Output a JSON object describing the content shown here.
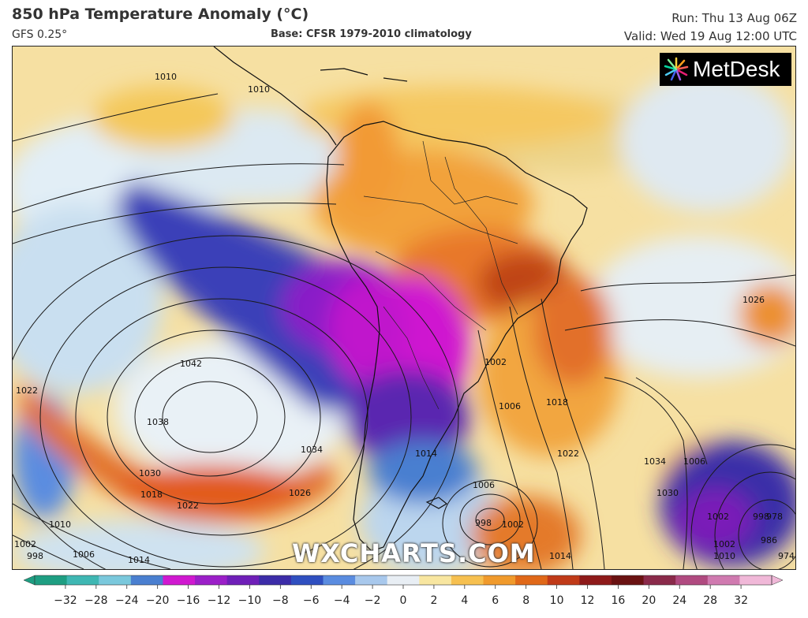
{
  "header": {
    "title": "850 hPa Temperature Anomaly (°C)",
    "model": "GFS 0.25°",
    "base": "Base: CFSR 1979-2010 climatology",
    "run": "Run: Thu 13 Aug 06Z",
    "valid": "Valid: Wed 19 Aug 12:00 UTC"
  },
  "branding": {
    "logo_text": "MetDesk",
    "watermark": "WXCHARTS.COM"
  },
  "isobar_labels": [
    "1010",
    "1010",
    "1042",
    "1038",
    "1030",
    "1034",
    "1026",
    "1022",
    "1018",
    "1022",
    "1010",
    "1006",
    "1002",
    "998",
    "1014",
    "1014",
    "1006",
    "1002",
    "998",
    "1002",
    "1006",
    "1014",
    "1018",
    "1022",
    "1026",
    "1034",
    "1030",
    "1006",
    "1002",
    "998",
    "986",
    "978",
    "974",
    "1002",
    "1010"
  ],
  "legend": {
    "ticks": [
      "−32",
      "−28",
      "−24",
      "−20",
      "−16",
      "−12",
      "−10",
      "−8",
      "−6",
      "−4",
      "−2",
      "0",
      "2",
      "4",
      "6",
      "8",
      "10",
      "12",
      "16",
      "20",
      "24",
      "28",
      "32"
    ],
    "colors": [
      "#1e9e82",
      "#3fb7b3",
      "#7ac8dc",
      "#4a7fd0",
      "#d018d0",
      "#9b1fc8",
      "#6f1fb8",
      "#3c2ca8",
      "#2f4fc0",
      "#5a8ce0",
      "#a8c8ec",
      "#e8eef4",
      "#f8e6a0",
      "#f6c050",
      "#f09a2c",
      "#e06818",
      "#c03a18",
      "#8e1a1a",
      "#6a1212",
      "#8a2a4a",
      "#b04a80",
      "#d07ab0",
      "#f0b8d8"
    ]
  }
}
